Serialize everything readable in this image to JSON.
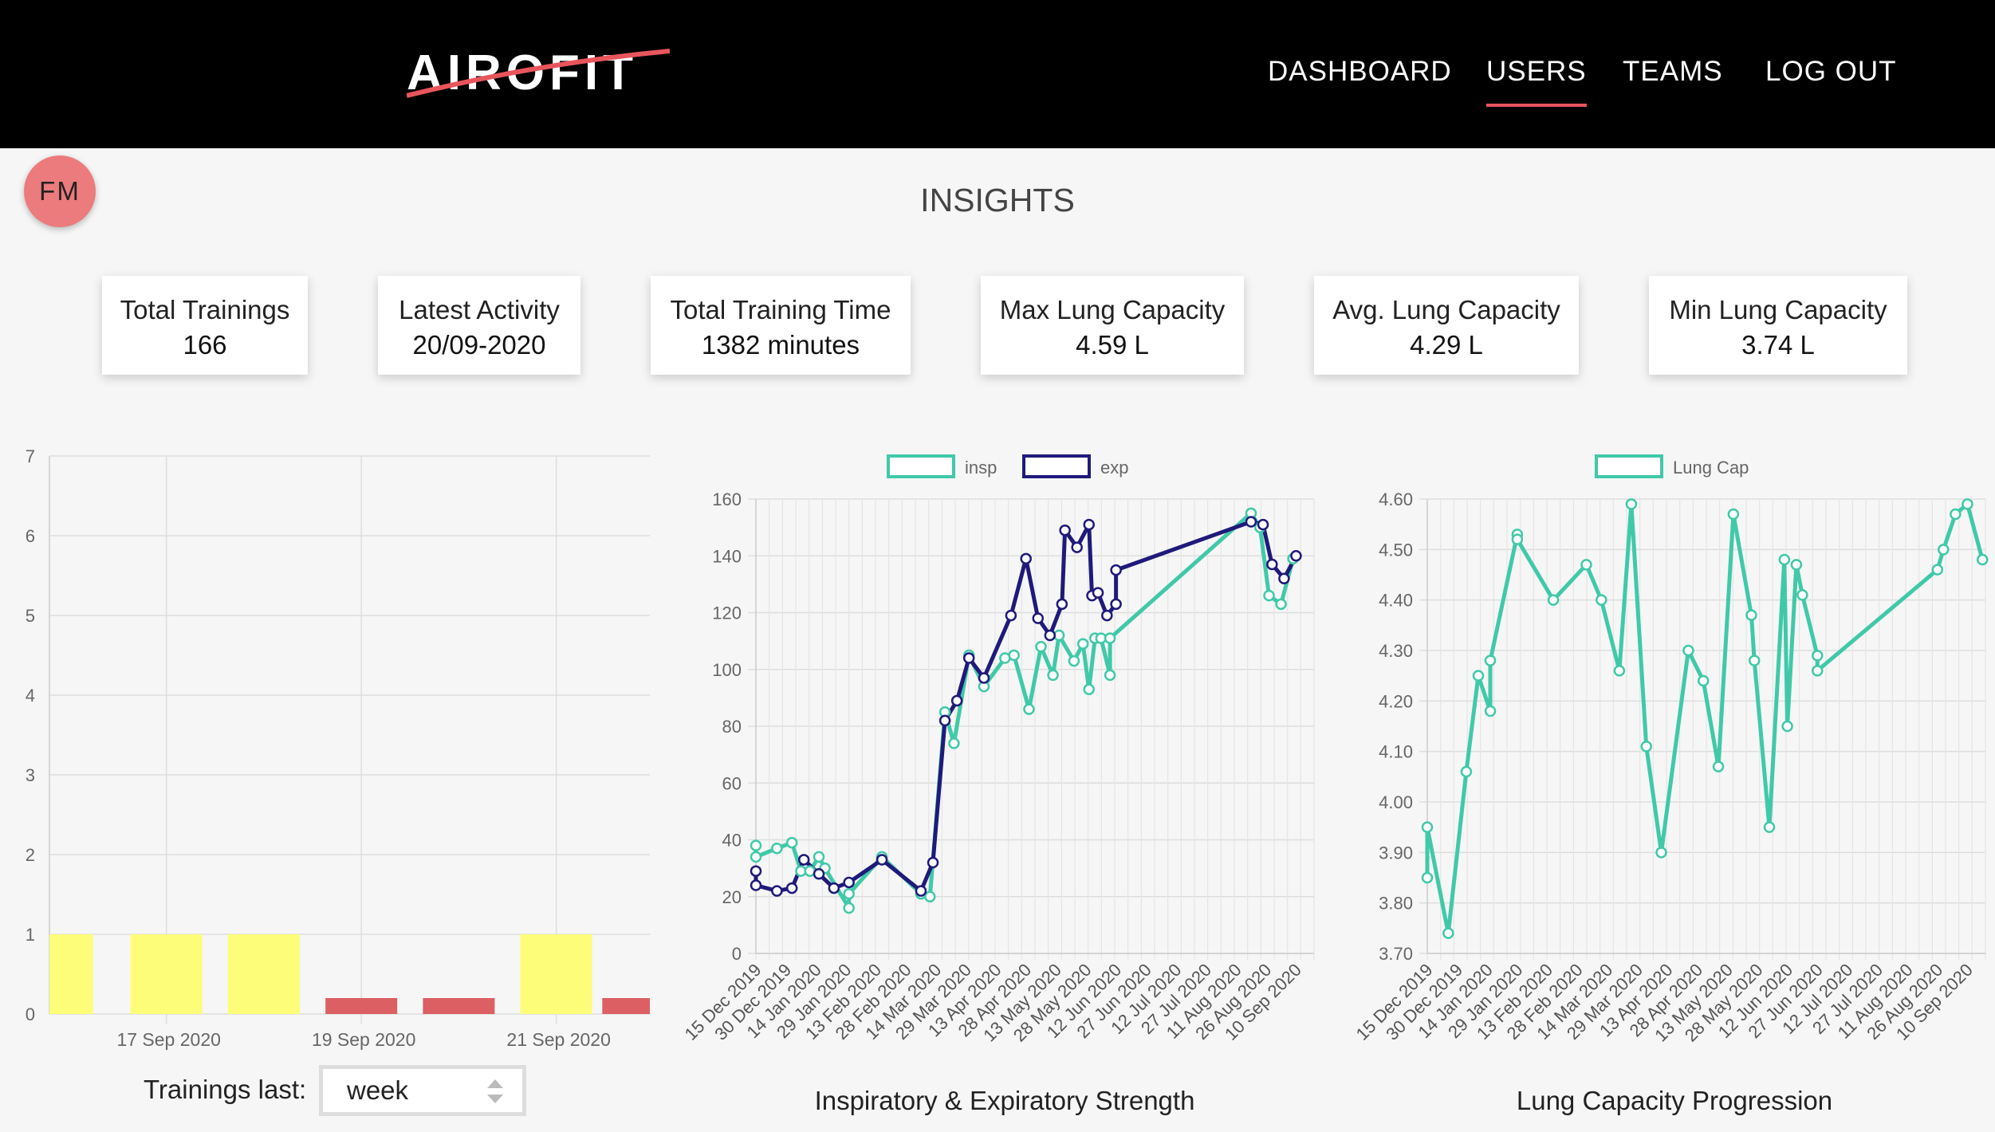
{
  "header": {
    "logo_text": "AIROFIT",
    "nav": [
      {
        "label": "DASHBOARD",
        "active": false
      },
      {
        "label": "USERS",
        "active": true
      },
      {
        "label": "TEAMS",
        "active": false
      },
      {
        "label": "LOG OUT",
        "active": false
      }
    ]
  },
  "avatar": {
    "initials": "FM"
  },
  "page_title": "INSIGHTS",
  "stats": [
    {
      "label": "Total Trainings",
      "value": "166"
    },
    {
      "label": "Latest Activity",
      "value": "20/09-2020"
    },
    {
      "label": "Total Training Time",
      "value": "1382 minutes"
    },
    {
      "label": "Max Lung Capacity",
      "value": "4.59 L"
    },
    {
      "label": "Avg. Lung Capacity",
      "value": "4.29 L"
    },
    {
      "label": "Min Lung Capacity",
      "value": "3.74 L"
    }
  ],
  "trainings_control": {
    "label": "Trainings last:",
    "value": "week"
  },
  "colors": {
    "accent": "#e8555c",
    "insp": "#40c9a9",
    "exp": "#1f1a7a",
    "bar_yellow": "#fdfd7a",
    "bar_red": "#db5f63"
  },
  "chart_data": [
    {
      "type": "bar",
      "title": "",
      "ylim": [
        0,
        7
      ],
      "y_ticks": [
        "0",
        "1",
        "2",
        "3",
        "4",
        "5",
        "6",
        "7"
      ],
      "x_tick_labels": [
        "17 Sep 2020",
        "19 Sep 2020",
        "21 Sep 2020"
      ],
      "bars": [
        {
          "slot": 0,
          "value": 1,
          "color": "yellow"
        },
        {
          "slot": 1,
          "value": 1,
          "color": "yellow"
        },
        {
          "slot": 2,
          "value": 1,
          "color": "yellow"
        },
        {
          "slot": 3,
          "value": 0.2,
          "color": "red"
        },
        {
          "slot": 4,
          "value": 0.2,
          "color": "red"
        },
        {
          "slot": 5,
          "value": 1,
          "color": "yellow"
        },
        {
          "slot": 6,
          "value": 0.2,
          "color": "red"
        }
      ]
    },
    {
      "type": "line",
      "title": "Inspiratory & Expiratory Strength",
      "ylim": [
        0,
        160
      ],
      "y_ticks": [
        "0",
        "20",
        "40",
        "60",
        "80",
        "100",
        "120",
        "140",
        "160"
      ],
      "x_tick_labels": [
        "15 Dec 2019",
        "30 Dec 2019",
        "14 Jan 2020",
        "29 Jan 2020",
        "13 Feb 2020",
        "28 Feb 2020",
        "14 Mar 2020",
        "29 Mar 2020",
        "13 Apr 2020",
        "28 Apr 2020",
        "13 May 2020",
        "28 May 2020",
        "12 Jun 2020",
        "27 Jun 2020",
        "12 Jul 2020",
        "27 Jul 2020",
        "11 Aug 2020",
        "26 Aug 2020",
        "10 Sep 2020"
      ],
      "x_range": [
        0,
        18.6
      ],
      "series": [
        {
          "name": "insp",
          "color": "#40c9a9",
          "points": [
            [
              0,
              38
            ],
            [
              0,
              34
            ],
            [
              0.7,
              37
            ],
            [
              1.2,
              39
            ],
            [
              1.5,
              29
            ],
            [
              1.8,
              29
            ],
            [
              2.1,
              34
            ],
            [
              2.3,
              30
            ],
            [
              3.1,
              16
            ],
            [
              3.1,
              21
            ],
            [
              4.2,
              34
            ],
            [
              5.5,
              21
            ],
            [
              5.8,
              20
            ],
            [
              6.3,
              85
            ],
            [
              6.6,
              74
            ],
            [
              7.1,
              105
            ],
            [
              7.6,
              94
            ],
            [
              8.3,
              104
            ],
            [
              8.6,
              105
            ],
            [
              9.1,
              86
            ],
            [
              9.5,
              108
            ],
            [
              9.9,
              98
            ],
            [
              10.1,
              112
            ],
            [
              10.6,
              103
            ],
            [
              10.9,
              109
            ],
            [
              11.1,
              93
            ],
            [
              11.3,
              111
            ],
            [
              11.5,
              111
            ],
            [
              11.8,
              98
            ],
            [
              11.8,
              111
            ],
            [
              16.5,
              155
            ],
            [
              16.8,
              150
            ],
            [
              17.1,
              126
            ],
            [
              17.5,
              123
            ],
            [
              17.9,
              139
            ]
          ]
        },
        {
          "name": "exp",
          "color": "#1f1a7a",
          "points": [
            [
              0,
              29
            ],
            [
              0,
              24
            ],
            [
              0.7,
              22
            ],
            [
              1.2,
              23
            ],
            [
              1.6,
              33
            ],
            [
              2.1,
              28
            ],
            [
              2.6,
              23
            ],
            [
              3.1,
              25
            ],
            [
              4.2,
              33
            ],
            [
              5.5,
              22
            ],
            [
              5.9,
              32
            ],
            [
              6.3,
              82
            ],
            [
              6.7,
              89
            ],
            [
              7.1,
              104
            ],
            [
              7.6,
              97
            ],
            [
              8.5,
              119
            ],
            [
              9.0,
              139
            ],
            [
              9.4,
              118
            ],
            [
              9.8,
              112
            ],
            [
              10.2,
              123
            ],
            [
              10.3,
              149
            ],
            [
              10.7,
              143
            ],
            [
              11.1,
              151
            ],
            [
              11.2,
              126
            ],
            [
              11.4,
              127
            ],
            [
              11.7,
              119
            ],
            [
              12.0,
              123
            ],
            [
              12.0,
              135
            ],
            [
              16.5,
              152
            ],
            [
              16.9,
              151
            ],
            [
              17.2,
              137
            ],
            [
              17.6,
              132
            ],
            [
              18.0,
              140
            ]
          ]
        }
      ]
    },
    {
      "type": "line",
      "title": "Lung Capacity Progression",
      "ylim": [
        3.7,
        4.6
      ],
      "y_ticks": [
        "3.70",
        "3.80",
        "3.90",
        "4.00",
        "4.10",
        "4.20",
        "4.30",
        "4.40",
        "4.50",
        "4.60"
      ],
      "x_tick_labels": [
        "15 Dec 2019",
        "30 Dec 2019",
        "14 Jan 2020",
        "29 Jan 2020",
        "13 Feb 2020",
        "28 Feb 2020",
        "14 Mar 2020",
        "29 Mar 2020",
        "13 Apr 2020",
        "28 Apr 2020",
        "13 May 2020",
        "28 May 2020",
        "12 Jun 2020",
        "27 Jun 2020",
        "12 Jul 2020",
        "27 Jul 2020",
        "11 Aug 2020",
        "26 Aug 2020",
        "10 Sep 2020"
      ],
      "x_range": [
        0,
        18.6
      ],
      "series": [
        {
          "name": "Lung Cap",
          "color": "#40c9a9",
          "points": [
            [
              0,
              3.85
            ],
            [
              0,
              3.95
            ],
            [
              0.7,
              3.74
            ],
            [
              1.3,
              4.06
            ],
            [
              1.7,
              4.25
            ],
            [
              2.1,
              4.18
            ],
            [
              2.1,
              4.28
            ],
            [
              3.0,
              4.53
            ],
            [
              3.0,
              4.52
            ],
            [
              4.2,
              4.4
            ],
            [
              5.3,
              4.47
            ],
            [
              5.8,
              4.4
            ],
            [
              6.4,
              4.26
            ],
            [
              6.8,
              4.59
            ],
            [
              7.3,
              4.11
            ],
            [
              7.8,
              3.9
            ],
            [
              8.7,
              4.3
            ],
            [
              9.2,
              4.24
            ],
            [
              9.7,
              4.07
            ],
            [
              10.2,
              4.57
            ],
            [
              10.8,
              4.37
            ],
            [
              10.9,
              4.28
            ],
            [
              11.4,
              3.95
            ],
            [
              11.9,
              4.48
            ],
            [
              12.0,
              4.15
            ],
            [
              12.3,
              4.47
            ],
            [
              12.5,
              4.41
            ],
            [
              13.0,
              4.29
            ],
            [
              13.0,
              4.26
            ],
            [
              17.0,
              4.46
            ],
            [
              17.2,
              4.5
            ],
            [
              17.6,
              4.57
            ],
            [
              18.0,
              4.59
            ],
            [
              18.5,
              4.48
            ]
          ]
        }
      ]
    }
  ]
}
